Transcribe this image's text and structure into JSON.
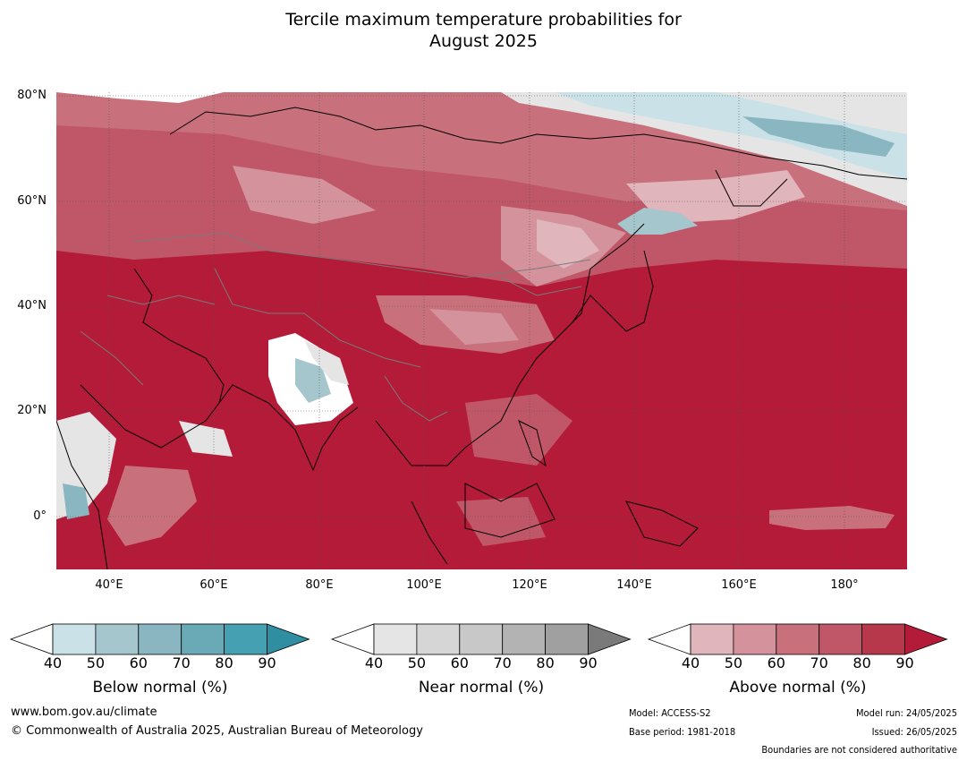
{
  "title": {
    "line1": "Tercile maximum temperature probabilities for",
    "line2": "August 2025"
  },
  "map": {
    "lat_labels": [
      "80°N",
      "60°N",
      "40°N",
      "20°N",
      "0°"
    ],
    "lon_labels": [
      "40°E",
      "60°E",
      "80°E",
      "100°E",
      "120°E",
      "140°E",
      "160°E",
      "180°"
    ],
    "extent": {
      "lon_min": 30,
      "lon_max": 192,
      "lat_min": -10,
      "lat_max": 81
    },
    "dominant_category": "Above normal",
    "dominant_color": "#b31b38"
  },
  "legends": [
    {
      "title": "Below normal (%)",
      "ticks": [
        "40",
        "50",
        "60",
        "70",
        "80",
        "90"
      ],
      "colors": [
        "#c9e1e7",
        "#a5c6cd",
        "#89b6c0",
        "#6aaab7",
        "#45a0b1",
        "#2f8ea1"
      ]
    },
    {
      "title": "Near normal (%)",
      "ticks": [
        "40",
        "50",
        "60",
        "70",
        "80",
        "90"
      ],
      "colors": [
        "#e5e5e5",
        "#d6d6d6",
        "#c8c8c8",
        "#b3b3b3",
        "#a0a0a0",
        "#7a7a7a"
      ]
    },
    {
      "title": "Above normal (%)",
      "ticks": [
        "40",
        "50",
        "60",
        "70",
        "80",
        "90"
      ],
      "colors": [
        "#e0b5bc",
        "#d4939c",
        "#c9707d",
        "#c05768",
        "#b7384b",
        "#b31b38"
      ]
    }
  ],
  "footer": {
    "website": "www.bom.gov.au/climate",
    "copyright": "© Commonwealth of Australia 2025, Australian Bureau of Meteorology",
    "model": "Model: ACCESS-S2",
    "base_period": "Base period: 1981-2018",
    "model_run": "Model run: 24/05/2025",
    "issued": "Issued: 26/05/2025",
    "disclaimer": "Boundaries are not considered authoritative"
  }
}
